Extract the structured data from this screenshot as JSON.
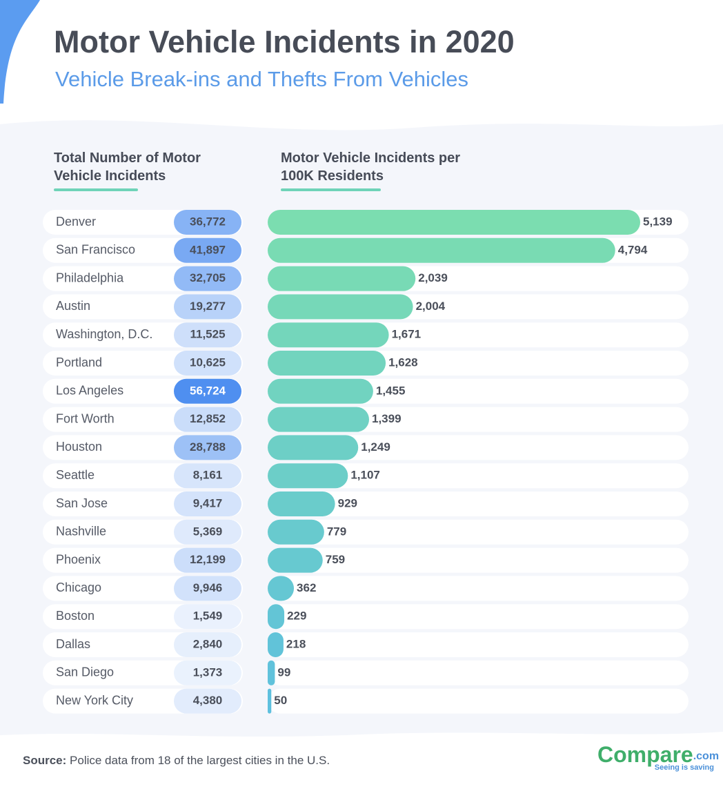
{
  "chart_data": {
    "type": "bar",
    "title": "Motor Vehicle Incidents in 2020",
    "subtitle": "Vehicle Break-ins and Thefts From Vehicles",
    "categories": [
      "Denver",
      "San Francisco",
      "Philadelphia",
      "Austin",
      "Washington, D.C.",
      "Portland",
      "Los Angeles",
      "Fort Worth",
      "Houston",
      "Seattle",
      "San Jose",
      "Nashville",
      "Phoenix",
      "Chicago",
      "Boston",
      "Dallas",
      "San Diego",
      "New York City"
    ],
    "series": [
      {
        "name": "Total Number of Motor Vehicle Incidents",
        "color": "#4f8ff0",
        "values": [
          36772,
          41897,
          32705,
          19277,
          11525,
          10625,
          56724,
          12852,
          28788,
          8161,
          9417,
          5369,
          12199,
          9946,
          1549,
          2840,
          1373,
          4380
        ],
        "value_labels": [
          "36,772",
          "41,897",
          "32,705",
          "19,277",
          "11,525",
          "10,625",
          "56,724",
          "12,852",
          "28,788",
          "8,161",
          "9,417",
          "5,369",
          "12,199",
          "9,946",
          "1,549",
          "2,840",
          "1,373",
          "4,380"
        ]
      },
      {
        "name": "Motor Vehicle Incidents per 100K Residents",
        "colors": [
          "#7bddb0",
          "#5ec0de"
        ],
        "values": [
          5139,
          4794,
          2039,
          2004,
          1671,
          1628,
          1455,
          1399,
          1249,
          1107,
          929,
          779,
          759,
          362,
          229,
          218,
          99,
          50
        ],
        "value_labels": [
          "5,139",
          "4,794",
          "2,039",
          "2,004",
          "1,671",
          "1,628",
          "1,455",
          "1,399",
          "1,249",
          "1,107",
          "929",
          "779",
          "759",
          "362",
          "229",
          "218",
          "99",
          "50"
        ]
      }
    ]
  },
  "source_label": "Source:",
  "source": "Police data from 18 of the largest cities in the U.S.",
  "logo": {
    "name": "Compare",
    "suffix": ".com",
    "tagline": "Seeing is saving"
  }
}
